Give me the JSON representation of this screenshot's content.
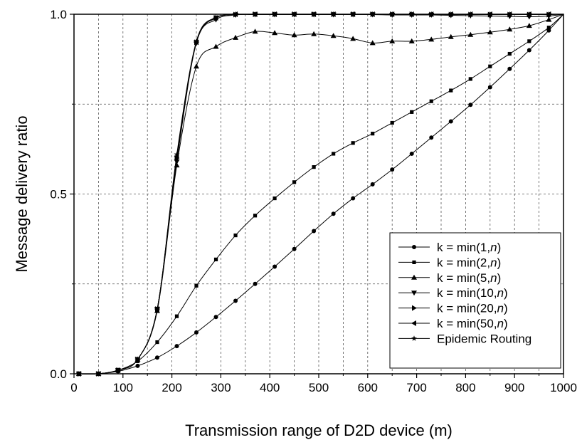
{
  "chart_data": {
    "type": "line",
    "title": "",
    "xlabel": "Transmission range of D2D device (m)",
    "ylabel": "Message delivery ratio",
    "xlim": [
      0,
      1000
    ],
    "ylim": [
      0,
      1
    ],
    "x_ticks": [
      0,
      100,
      200,
      300,
      400,
      500,
      600,
      700,
      800,
      900,
      1000
    ],
    "y_ticks": [
      0.0,
      0.5,
      1.0
    ],
    "y_tick_labels": [
      "0.0",
      "0.5",
      "1.0"
    ],
    "grid": true,
    "legend_position": "bottom-right",
    "x": [
      10,
      50,
      90,
      130,
      170,
      210,
      250,
      290,
      330,
      370,
      410,
      450,
      490,
      530,
      570,
      610,
      650,
      690,
      730,
      770,
      810,
      850,
      890,
      930,
      970,
      1000
    ],
    "series": [
      {
        "name": "k = min(1,",
        "name_italic": "n",
        "name_suffix": ")",
        "marker": "circle",
        "values": [
          0.0,
          0.0,
          0.007,
          0.022,
          0.045,
          0.077,
          0.115,
          0.158,
          0.203,
          0.25,
          0.298,
          0.347,
          0.397,
          0.445,
          0.488,
          0.527,
          0.568,
          0.612,
          0.657,
          0.702,
          0.748,
          0.797,
          0.848,
          0.9,
          0.955,
          1.0
        ]
      },
      {
        "name": "k = min(2,",
        "name_italic": "n",
        "name_suffix": ")",
        "marker": "square",
        "values": [
          0.0,
          0.0,
          0.01,
          0.035,
          0.088,
          0.16,
          0.245,
          0.318,
          0.385,
          0.44,
          0.488,
          0.533,
          0.575,
          0.612,
          0.642,
          0.668,
          0.698,
          0.728,
          0.758,
          0.788,
          0.82,
          0.855,
          0.89,
          0.925,
          0.963,
          1.0
        ]
      },
      {
        "name": "k = min(5,",
        "name_italic": "n",
        "name_suffix": ")",
        "marker": "triangle-up",
        "values": [
          0.0,
          0.0,
          0.01,
          0.04,
          0.175,
          0.58,
          0.855,
          0.91,
          0.935,
          0.952,
          0.948,
          0.942,
          0.945,
          0.94,
          0.932,
          0.92,
          0.925,
          0.925,
          0.93,
          0.937,
          0.943,
          0.95,
          0.958,
          0.968,
          0.985,
          1.0
        ]
      },
      {
        "name": "k = min(10,",
        "name_italic": "n",
        "name_suffix": ")",
        "marker": "triangle-down",
        "values": [
          0.0,
          0.0,
          0.01,
          0.04,
          0.18,
          0.59,
          0.92,
          0.985,
          0.998,
          0.999,
          0.999,
          0.999,
          0.999,
          0.999,
          0.999,
          0.999,
          0.998,
          0.998,
          0.998,
          0.997,
          0.996,
          0.995,
          0.994,
          0.993,
          0.995,
          1.0
        ]
      },
      {
        "name": "k = min(20,",
        "name_italic": "n",
        "name_suffix": ")",
        "marker": "triangle-right",
        "values": [
          0.0,
          0.0,
          0.01,
          0.04,
          0.18,
          0.6,
          0.922,
          0.99,
          0.999,
          1.0,
          1.0,
          1.0,
          1.0,
          1.0,
          1.0,
          1.0,
          1.0,
          1.0,
          0.999,
          0.999,
          0.999,
          0.999,
          0.999,
          0.999,
          0.999,
          1.0
        ]
      },
      {
        "name": "k = min(50,",
        "name_italic": "n",
        "name_suffix": ")",
        "marker": "triangle-left",
        "values": [
          0.0,
          0.0,
          0.01,
          0.04,
          0.18,
          0.605,
          0.922,
          0.99,
          1.0,
          1.0,
          1.0,
          1.0,
          1.0,
          1.0,
          1.0,
          1.0,
          1.0,
          1.0,
          1.0,
          1.0,
          1.0,
          1.0,
          1.0,
          1.0,
          1.0,
          1.0
        ]
      },
      {
        "name": "Epidemic Routing",
        "name_italic": "",
        "name_suffix": "",
        "marker": "star",
        "values": [
          0.0,
          0.0,
          0.01,
          0.04,
          0.18,
          0.61,
          0.925,
          0.992,
          1.0,
          1.0,
          1.0,
          1.0,
          1.0,
          1.0,
          1.0,
          1.0,
          1.0,
          1.0,
          1.0,
          1.0,
          1.0,
          1.0,
          1.0,
          1.0,
          1.0,
          1.0
        ]
      }
    ]
  }
}
